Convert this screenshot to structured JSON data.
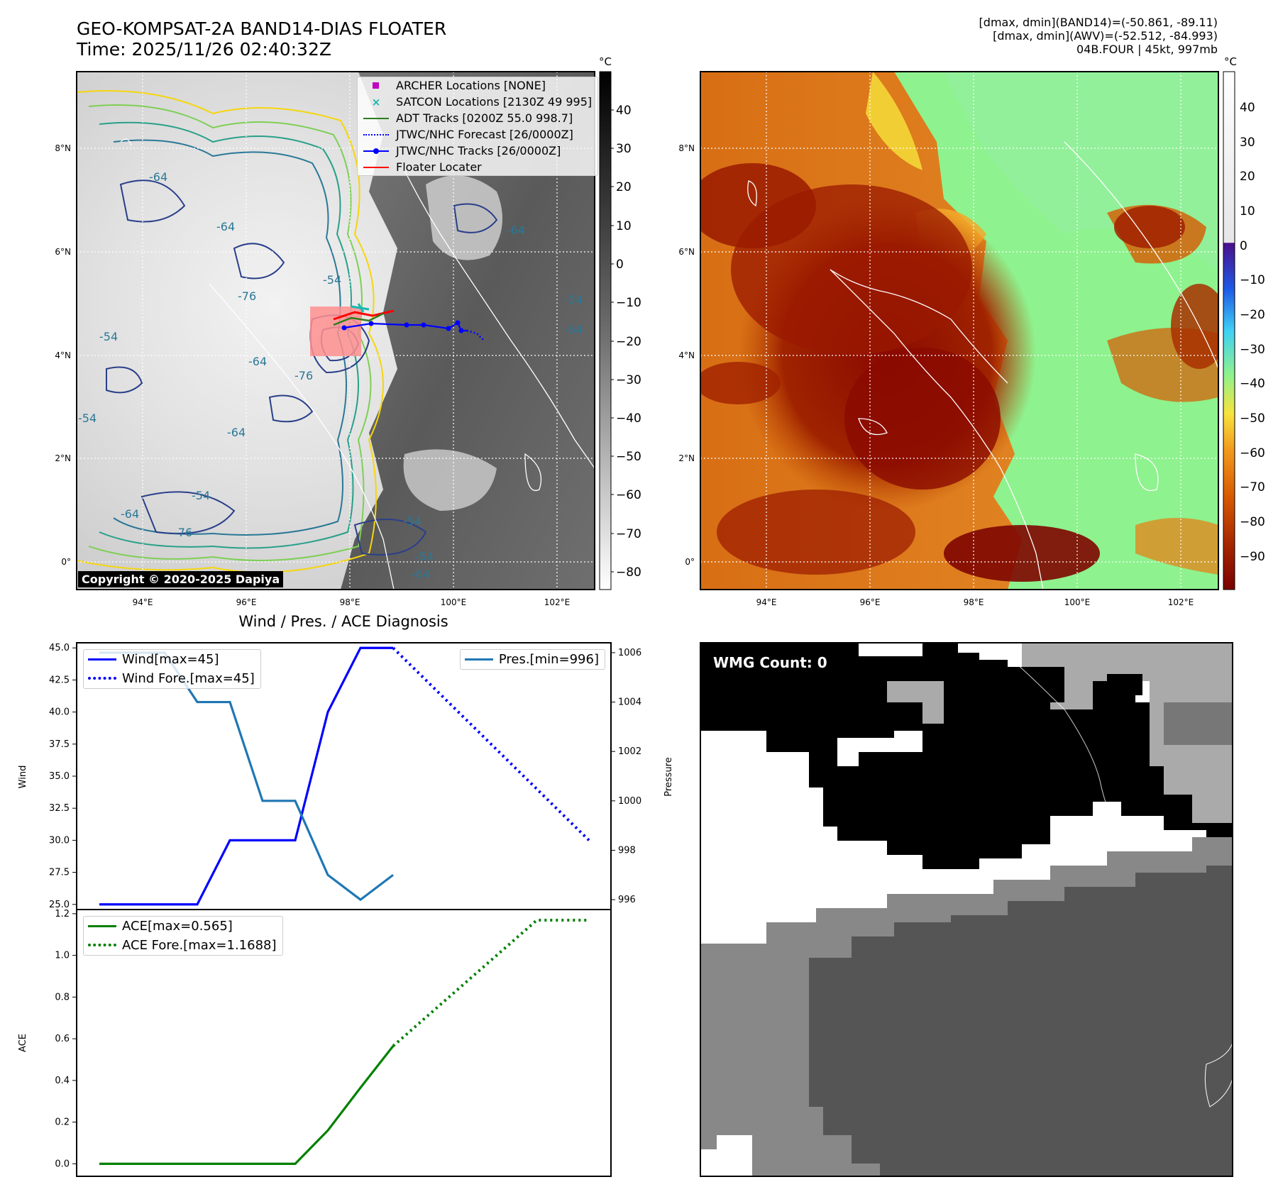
{
  "header": {
    "title": "GEO-KOMPSAT-2A BAND14-DIAS FLOATER",
    "time": "Time: 2025/11/26 02:40:32Z",
    "stats_band14": "[dmax, dmin](BAND14)=(-50.861, -89.11)",
    "stats_awv": "[dmax, dmin](AWV)=(-52.512, -84.993)",
    "storm": "04B.FOUR | 45kt, 997mb"
  },
  "map": {
    "lat_labels": [
      "8°N",
      "6°N",
      "4°N",
      "2°N",
      "0°"
    ],
    "lon_labels": [
      "94°E",
      "96°E",
      "98°E",
      "100°E",
      "102°E"
    ],
    "copyright": "Copyright © 2020-2025 Dapiya",
    "contour_labels": [
      "-54",
      "-64",
      "-76",
      "-54",
      "-64",
      "-64",
      "-54",
      "-64",
      "-76",
      "-54",
      "-64",
      "-54",
      "-64",
      "-64",
      "-54",
      "-76",
      "-64",
      "-54"
    ],
    "legend": [
      {
        "label": "ARCHER Locations [NONE]",
        "color": "#bf00bf",
        "icon": "square-marker"
      },
      {
        "label": "SATCON Locations [2130Z 49 995]",
        "color": "#17b8b0",
        "icon": "x-marker"
      },
      {
        "label": "ADT Tracks [0200Z 55.0 998.7]",
        "color": "#2e7d1e",
        "icon": "solid-line"
      },
      {
        "label": "JTWC/NHC Forecast [26/0000Z]",
        "color": "#0000ff",
        "icon": "dotted-line"
      },
      {
        "label": "JTWC/NHC Tracks [26/0000Z]",
        "color": "#0000ff",
        "icon": "line-with-dot"
      },
      {
        "label": "Floater Locater",
        "color": "#ff0000",
        "icon": "solid-line"
      }
    ]
  },
  "colorbar_gray": {
    "unit": "°C",
    "ticks": [
      "40",
      "30",
      "20",
      "10",
      "0",
      "−10",
      "−20",
      "−30",
      "−40",
      "−50",
      "−60",
      "−70",
      "−80"
    ]
  },
  "colorbar_color": {
    "unit": "°C",
    "ticks": [
      "40",
      "30",
      "20",
      "10",
      "0",
      "−10",
      "−20",
      "−30",
      "−40",
      "−50",
      "−60",
      "−70",
      "−80",
      "−90"
    ]
  },
  "wmg": {
    "label": "WMG Count: 0"
  },
  "chart_data": [
    {
      "type": "line",
      "title": "Wind / Pres. / ACE Diagnosis",
      "xlabel": "",
      "ylabel": "Wind",
      "ylabel_right": "Pressure",
      "x": [
        0,
        1,
        2,
        3,
        4,
        5,
        6,
        7,
        8,
        9,
        10,
        11
      ],
      "ylim": [
        24.6,
        45.4
      ],
      "ylim_right": [
        995.6,
        1006.4
      ],
      "yticks": [
        "45.0",
        "42.5",
        "40.0",
        "37.5",
        "35.0",
        "32.5",
        "30.0",
        "27.5",
        "25.0"
      ],
      "yticks_right": [
        "1006",
        "1004",
        "1002",
        "1000",
        "998",
        "996"
      ],
      "series": [
        {
          "name": "Wind[max=45]",
          "axis": "left",
          "style": "solid",
          "color": "#0000ff",
          "x": [
            0,
            1,
            2,
            3,
            4,
            5,
            6,
            7,
            8,
            9
          ],
          "values": [
            25,
            25,
            25,
            25,
            30,
            30,
            30,
            40,
            45,
            45
          ]
        },
        {
          "name": "Wind Fore.[max=45]",
          "axis": "left",
          "style": "dotted",
          "color": "#0000ff",
          "x": [
            9,
            15
          ],
          "values": [
            45,
            30
          ]
        },
        {
          "name": "Pres.[min=996]",
          "axis": "right",
          "style": "solid",
          "color": "#1f77b4",
          "x": [
            0,
            1,
            2,
            3,
            4,
            5,
            6,
            7,
            8,
            9
          ],
          "values": [
            1006,
            1006,
            1006,
            1004,
            1004,
            1000,
            1000,
            997,
            996,
            997
          ]
        }
      ]
    },
    {
      "type": "line",
      "title": "",
      "xlabel": "",
      "ylabel": "ACE",
      "ylim": [
        -0.06,
        1.22
      ],
      "yticks": [
        "1.2",
        "1.0",
        "0.8",
        "0.6",
        "0.4",
        "0.2",
        "0.0"
      ],
      "series": [
        {
          "name": "ACE[max=0.565]",
          "style": "solid",
          "color": "#008000",
          "x": [
            0,
            1,
            2,
            3,
            4,
            5,
            6,
            7,
            8,
            9
          ],
          "values": [
            0,
            0,
            0,
            0,
            0,
            0,
            0,
            0.16,
            0.365,
            0.565
          ]
        },
        {
          "name": "ACE Fore.[max=1.1688]",
          "style": "dotted",
          "color": "#008000",
          "x": [
            9,
            13.4,
            15
          ],
          "values": [
            0.565,
            1.1688,
            1.1688
          ]
        }
      ]
    }
  ]
}
